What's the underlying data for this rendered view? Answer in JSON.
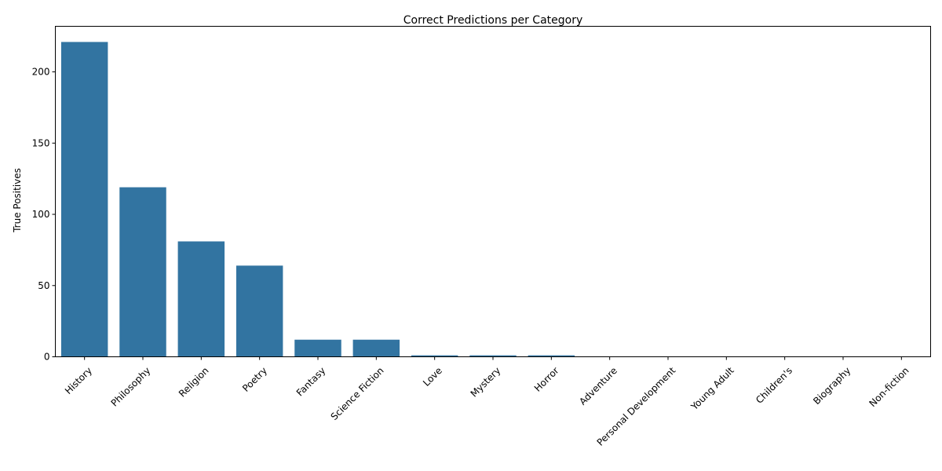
{
  "chart_data": {
    "type": "bar",
    "title": "Correct Predictions per Category",
    "xlabel": "",
    "ylabel": "True Positives",
    "categories": [
      "History",
      "Philosophy",
      "Religion",
      "Poetry",
      "Fantasy",
      "Science Fiction",
      "Love",
      "Mystery",
      "Horror",
      "Adventure",
      "Personal Development",
      "Young Adult",
      "Children's",
      "Biography",
      "Non-fiction"
    ],
    "values": [
      221,
      119,
      81,
      64,
      12,
      12,
      1,
      1,
      1,
      0,
      0,
      0,
      0,
      0,
      0
    ],
    "ylim": [
      0,
      232
    ],
    "yticks": [
      0,
      50,
      100,
      150,
      200
    ],
    "bar_color": "#3274a1",
    "grid": false,
    "x_tick_rotation_deg": 45
  }
}
